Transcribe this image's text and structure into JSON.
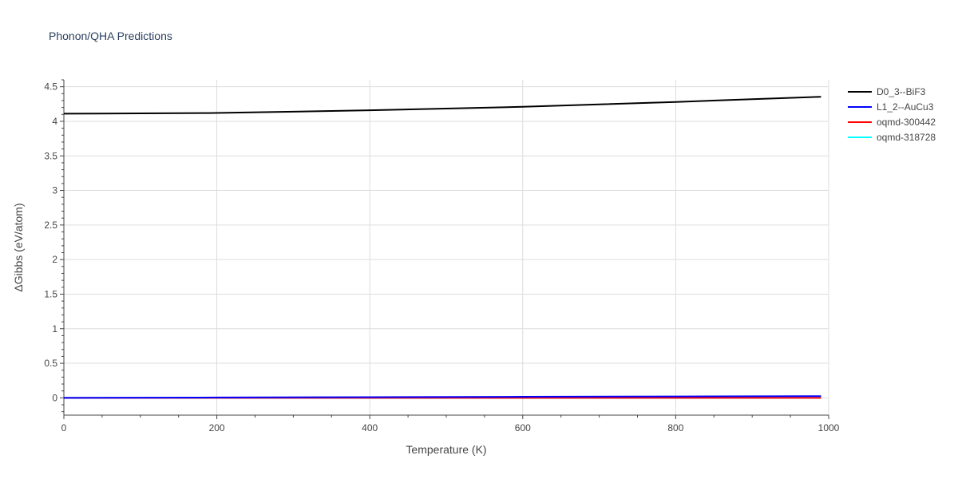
{
  "chart_data": {
    "type": "line",
    "title": "Phonon/QHA Predictions",
    "xlabel": "Temperature (K)",
    "ylabel": "ΔGibbs (eV/atom)",
    "xlim": [
      0,
      1000
    ],
    "ylim": [
      -0.25,
      4.6
    ],
    "xticks": [
      0,
      200,
      400,
      600,
      800,
      1000
    ],
    "xtick_labels": [
      "0",
      "200",
      "400",
      "600",
      "800",
      "1000"
    ],
    "yticks": [
      0,
      0.5,
      1,
      1.5,
      2,
      2.5,
      3,
      3.5,
      4,
      4.5
    ],
    "ytick_labels": [
      "0",
      "0.5",
      "1",
      "1.5",
      "2",
      "2.5",
      "3",
      "3.5",
      "4",
      "4.5"
    ],
    "grid": true,
    "legend_position": "right",
    "series": [
      {
        "name": "D0_3--BiF3",
        "color": "#000000",
        "x": [
          0,
          100,
          190,
          300,
          400,
          500,
          600,
          700,
          800,
          900,
          990
        ],
        "y": [
          4.11,
          4.115,
          4.12,
          4.14,
          4.16,
          4.185,
          4.21,
          4.245,
          4.28,
          4.32,
          4.355
        ]
      },
      {
        "name": "L1_2--AuCu3",
        "color": "#0000ff",
        "x": [
          0,
          200,
          400,
          600,
          800,
          990
        ],
        "y": [
          0.0,
          0.005,
          0.01,
          0.015,
          0.02,
          0.025
        ]
      },
      {
        "name": "oqmd-300442",
        "color": "#ff0000",
        "x": [
          0,
          200,
          400,
          600,
          800,
          990
        ],
        "y": [
          0.0,
          0.0,
          0.0,
          0.0,
          0.0,
          0.0
        ]
      },
      {
        "name": "oqmd-318728",
        "color": "#00ffff",
        "x": [
          0,
          200,
          400,
          600,
          800,
          990
        ],
        "y": [
          0.0,
          0.0,
          0.0,
          0.0,
          0.0,
          0.0
        ]
      }
    ]
  }
}
